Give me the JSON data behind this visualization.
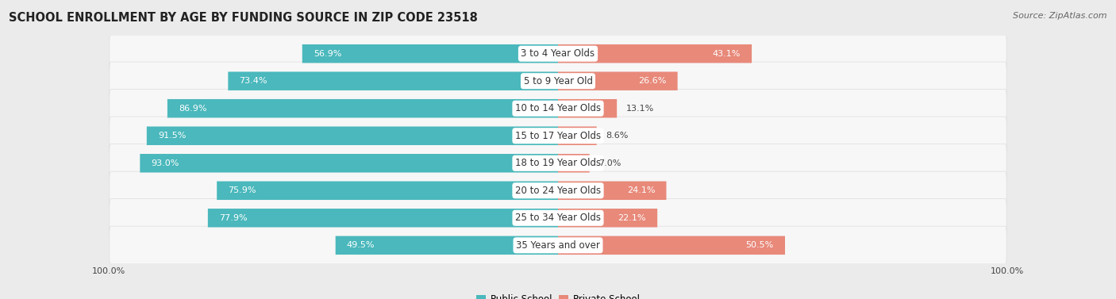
{
  "title": "SCHOOL ENROLLMENT BY AGE BY FUNDING SOURCE IN ZIP CODE 23518",
  "source": "Source: ZipAtlas.com",
  "categories": [
    "3 to 4 Year Olds",
    "5 to 9 Year Old",
    "10 to 14 Year Olds",
    "15 to 17 Year Olds",
    "18 to 19 Year Olds",
    "20 to 24 Year Olds",
    "25 to 34 Year Olds",
    "35 Years and over"
  ],
  "public_values": [
    56.9,
    73.4,
    86.9,
    91.5,
    93.0,
    75.9,
    77.9,
    49.5
  ],
  "private_values": [
    43.1,
    26.6,
    13.1,
    8.6,
    7.0,
    24.1,
    22.1,
    50.5
  ],
  "public_color": "#4ab8bc",
  "private_color": "#e8897a",
  "label_color_inside": "#ffffff",
  "label_color_outside": "#444444",
  "background_color": "#ebebeb",
  "row_bg_color": "#f7f7f7",
  "title_fontsize": 10.5,
  "source_fontsize": 8,
  "label_fontsize": 8,
  "legend_fontsize": 8.5,
  "axis_label_fontsize": 8,
  "inside_threshold_pub": 20,
  "inside_threshold_priv": 15
}
